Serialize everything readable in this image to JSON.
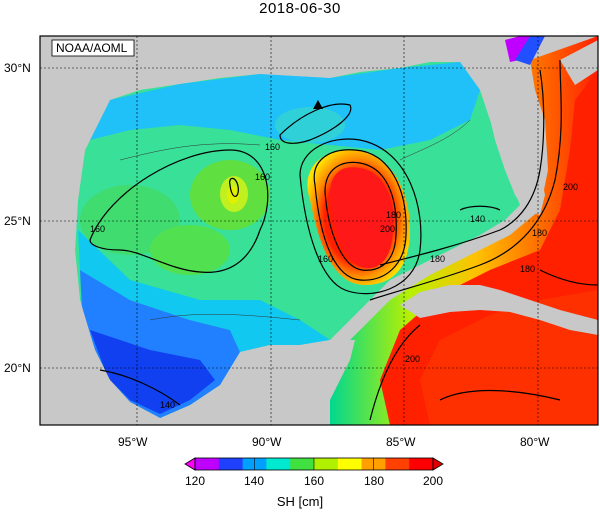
{
  "title": "2018-06-30",
  "credit": "NOAA/AOML",
  "lat_labels": [
    "30°N",
    "25°N",
    "20°N"
  ],
  "lon_labels": [
    "95°W",
    "90°W",
    "85°W",
    "80°W"
  ],
  "contour_labels": [
    "160",
    "160",
    "160",
    "160",
    "180",
    "180",
    "180",
    "200",
    "200",
    "140",
    "140",
    "200",
    "180"
  ],
  "colorbar": {
    "unit": "SH [cm]",
    "ticks": [
      "120",
      "140",
      "160",
      "180",
      "200"
    ],
    "colors": [
      "#c000ff",
      "#2040ff",
      "#00a0ff",
      "#00e8d0",
      "#40e040",
      "#b0f000",
      "#ffff00",
      "#ffa000",
      "#ff4000",
      "#ff0000"
    ]
  },
  "marker": "triangle-marker"
}
